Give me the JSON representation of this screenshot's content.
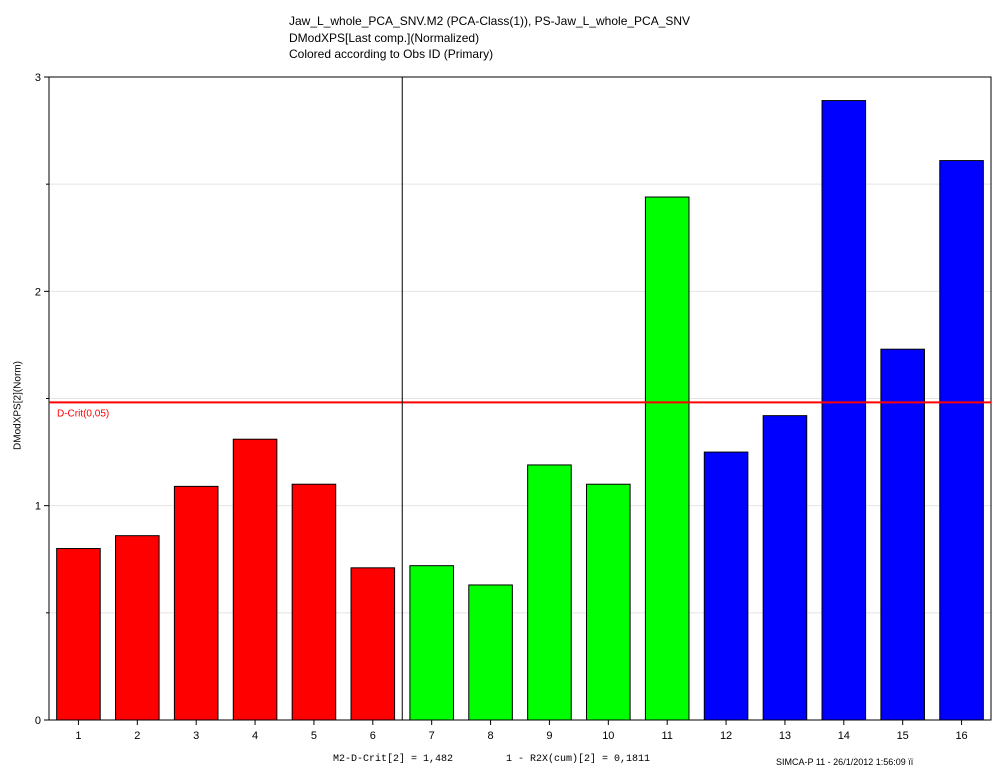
{
  "chart_data": {
    "type": "bar",
    "title_lines": [
      "Jaw_L_whole_PCA_SNV.M2 (PCA-Class(1)), PS-Jaw_L_whole_PCA_SNV",
      "DModXPS[Last comp.](Normalized)",
      "Colored according to Obs ID (Primary)"
    ],
    "xlabel": "",
    "ylabel": "DModXPS[2](Norm)",
    "categories": [
      "1",
      "2",
      "3",
      "4",
      "5",
      "6",
      "7",
      "8",
      "9",
      "10",
      "11",
      "12",
      "13",
      "14",
      "15",
      "16"
    ],
    "values": [
      0.8,
      0.86,
      1.09,
      1.31,
      1.1,
      0.71,
      0.72,
      0.63,
      1.19,
      1.1,
      2.44,
      1.25,
      1.42,
      2.89,
      1.73,
      2.61
    ],
    "bar_colors": [
      "#ff0000",
      "#ff0000",
      "#ff0000",
      "#ff0000",
      "#ff0000",
      "#ff0000",
      "#00ff00",
      "#00ff00",
      "#00ff00",
      "#00ff00",
      "#00ff00",
      "#0000ff",
      "#0000ff",
      "#0000ff",
      "#0000ff",
      "#0000ff"
    ],
    "ylim": [
      0,
      3
    ],
    "y_tick_labels": [
      "0",
      "1",
      "2",
      "3"
    ],
    "y_minor_ticks": [
      0.5,
      1.5,
      2.5
    ],
    "grid": true,
    "grid_color": "#e4e4e4",
    "reference_line": {
      "label": "D-Crit(0,05)",
      "value": 1.482,
      "color": "#ff0000"
    },
    "vertical_marker_between": [
      6,
      7
    ],
    "footer_left": "M2-D-Crit[2] = 1,482",
    "footer_right": "1 - R2X(cum)[2] = 0,1811",
    "credit": "SIMCA-P 11 - 26/1/2012 1:56:09 ïï"
  }
}
